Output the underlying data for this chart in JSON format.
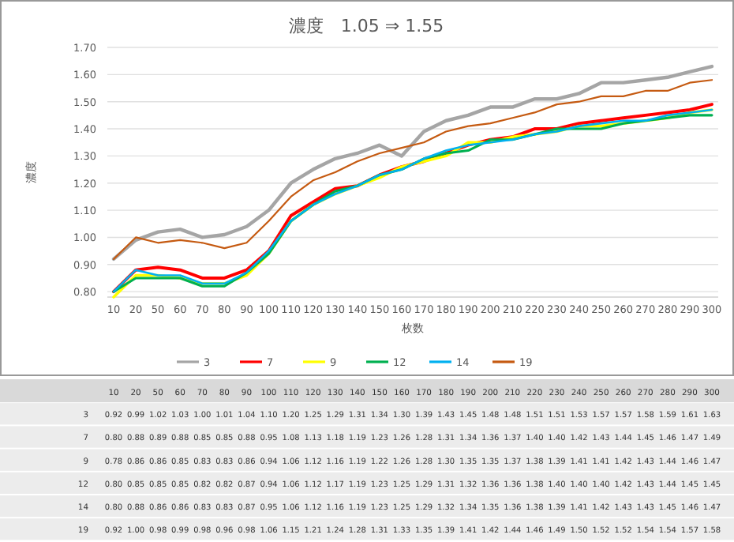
{
  "chart_data": {
    "type": "line",
    "title": "濃度　1.05 ⇒ 1.55",
    "xlabel": "枚数",
    "ylabel": "濃度",
    "categories": [
      "10",
      "20",
      "50",
      "60",
      "70",
      "80",
      "90",
      "100",
      "110",
      "120",
      "130",
      "140",
      "150",
      "160",
      "170",
      "180",
      "190",
      "200",
      "210",
      "220",
      "230",
      "240",
      "250",
      "260",
      "270",
      "280",
      "290",
      "300"
    ],
    "series": [
      {
        "name": "3",
        "color": "#a5a5a5",
        "values": [
          0.92,
          0.99,
          1.02,
          1.03,
          1.0,
          1.01,
          1.04,
          1.1,
          1.2,
          1.25,
          1.29,
          1.31,
          1.34,
          1.3,
          1.39,
          1.43,
          1.45,
          1.48,
          1.48,
          1.51,
          1.51,
          1.53,
          1.57,
          1.57,
          1.58,
          1.59,
          1.61,
          1.63
        ],
        "value_labels": [
          "0.92",
          "0.99",
          "1.02",
          "1.03",
          "1.00",
          "1.01",
          "1.04",
          "1.10",
          "1.20",
          "1.25",
          "1.29",
          "1.31",
          "1.34",
          "1.30",
          "1.39",
          "1.43",
          "1.45",
          "1.48",
          "1.48",
          "1.51",
          "1.51",
          "1.53",
          "1.57",
          "1.57",
          "1.58",
          "1.59",
          "1.61",
          "1.63"
        ]
      },
      {
        "name": "7",
        "color": "#ff0000",
        "values": [
          0.8,
          0.88,
          0.89,
          0.88,
          0.85,
          0.85,
          0.88,
          0.95,
          1.08,
          1.13,
          1.18,
          1.19,
          1.23,
          1.26,
          1.28,
          1.31,
          1.34,
          1.36,
          1.37,
          1.4,
          1.4,
          1.42,
          1.43,
          1.44,
          1.45,
          1.46,
          1.47,
          1.49
        ],
        "value_labels": [
          "0.80",
          "0.88",
          "0.89",
          "0.88",
          "0.85",
          "0.85",
          "0.88",
          "0.95",
          "1.08",
          "1.13",
          "1.18",
          "1.19",
          "1.23",
          "1.26",
          "1.28",
          "1.31",
          "1.34",
          "1.36",
          "1.37",
          "1.40",
          "1.40",
          "1.42",
          "1.43",
          "1.44",
          "1.45",
          "1.46",
          "1.47",
          "1.49"
        ]
      },
      {
        "name": "9",
        "color": "#ffff00",
        "values": [
          0.78,
          0.86,
          0.86,
          0.85,
          0.83,
          0.83,
          0.86,
          0.94,
          1.06,
          1.12,
          1.16,
          1.19,
          1.22,
          1.26,
          1.28,
          1.3,
          1.35,
          1.35,
          1.37,
          1.38,
          1.39,
          1.41,
          1.41,
          1.42,
          1.43,
          1.44,
          1.46,
          1.47
        ],
        "value_labels": [
          "0.78",
          "0.86",
          "0.86",
          "0.85",
          "0.83",
          "0.83",
          "0.86",
          "0.94",
          "1.06",
          "1.12",
          "1.16",
          "1.19",
          "1.22",
          "1.26",
          "1.28",
          "1.30",
          "1.35",
          "1.35",
          "1.37",
          "1.38",
          "1.39",
          "1.41",
          "1.41",
          "1.42",
          "1.43",
          "1.44",
          "1.46",
          "1.47"
        ]
      },
      {
        "name": "12",
        "color": "#00b050",
        "values": [
          0.8,
          0.85,
          0.85,
          0.85,
          0.82,
          0.82,
          0.87,
          0.94,
          1.06,
          1.12,
          1.17,
          1.19,
          1.23,
          1.25,
          1.29,
          1.31,
          1.32,
          1.36,
          1.36,
          1.38,
          1.4,
          1.4,
          1.4,
          1.42,
          1.43,
          1.44,
          1.45,
          1.45
        ],
        "value_labels": [
          "0.80",
          "0.85",
          "0.85",
          "0.85",
          "0.82",
          "0.82",
          "0.87",
          "0.94",
          "1.06",
          "1.12",
          "1.17",
          "1.19",
          "1.23",
          "1.25",
          "1.29",
          "1.31",
          "1.32",
          "1.36",
          "1.36",
          "1.38",
          "1.40",
          "1.40",
          "1.40",
          "1.42",
          "1.43",
          "1.44",
          "1.45",
          "1.45"
        ]
      },
      {
        "name": "14",
        "color": "#00b0f0",
        "values": [
          0.8,
          0.88,
          0.86,
          0.86,
          0.83,
          0.83,
          0.87,
          0.95,
          1.06,
          1.12,
          1.16,
          1.19,
          1.23,
          1.25,
          1.29,
          1.32,
          1.34,
          1.35,
          1.36,
          1.38,
          1.39,
          1.41,
          1.42,
          1.43,
          1.43,
          1.45,
          1.46,
          1.47
        ],
        "value_labels": [
          "0.80",
          "0.88",
          "0.86",
          "0.86",
          "0.83",
          "0.83",
          "0.87",
          "0.95",
          "1.06",
          "1.12",
          "1.16",
          "1.19",
          "1.23",
          "1.25",
          "1.29",
          "1.32",
          "1.34",
          "1.35",
          "1.36",
          "1.38",
          "1.39",
          "1.41",
          "1.42",
          "1.43",
          "1.43",
          "1.45",
          "1.46",
          "1.47"
        ]
      },
      {
        "name": "19",
        "color": "#c55a11",
        "values": [
          0.92,
          1.0,
          0.98,
          0.99,
          0.98,
          0.96,
          0.98,
          1.06,
          1.15,
          1.21,
          1.24,
          1.28,
          1.31,
          1.33,
          1.35,
          1.39,
          1.41,
          1.42,
          1.44,
          1.46,
          1.49,
          1.5,
          1.52,
          1.52,
          1.54,
          1.54,
          1.57,
          1.58
        ],
        "value_labels": [
          "0.92",
          "1.00",
          "0.98",
          "0.99",
          "0.98",
          "0.96",
          "0.98",
          "1.06",
          "1.15",
          "1.21",
          "1.24",
          "1.28",
          "1.31",
          "1.33",
          "1.35",
          "1.39",
          "1.41",
          "1.42",
          "1.44",
          "1.46",
          "1.49",
          "1.50",
          "1.52",
          "1.52",
          "1.54",
          "1.54",
          "1.57",
          "1.58"
        ]
      }
    ],
    "ylim": [
      0.78,
      1.7
    ],
    "yticks": [
      {
        "value": 0.8,
        "label": "0.80"
      },
      {
        "value": 0.9,
        "label": "0.90"
      },
      {
        "value": 1.0,
        "label": "1.00"
      },
      {
        "value": 1.1,
        "label": "1.10"
      },
      {
        "value": 1.2,
        "label": "1.20"
      },
      {
        "value": 1.3,
        "label": "1.30"
      },
      {
        "value": 1.4,
        "label": "1.40"
      },
      {
        "value": 1.5,
        "label": "1.50"
      },
      {
        "value": 1.6,
        "label": "1.60"
      },
      {
        "value": 1.7,
        "label": "1.70"
      }
    ],
    "grid": "y",
    "legend": "bottom",
    "marker": "none",
    "line_style": "solid"
  }
}
